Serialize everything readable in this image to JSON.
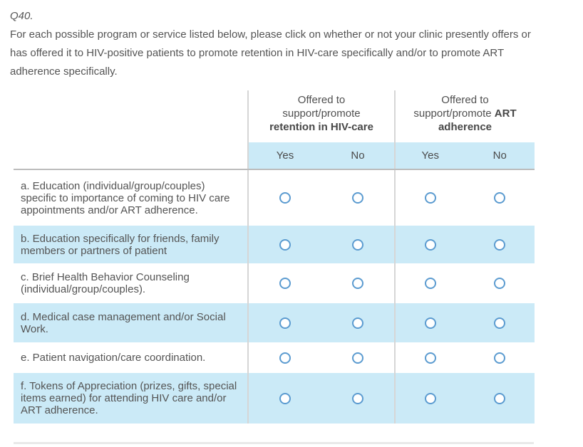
{
  "colors": {
    "row_shade_blue": "#cbeaf7",
    "radio_border_blue": "#5b9bd0",
    "column_line_gray": "#d6d6d6",
    "table_top_border_gray": "#bcbcbc",
    "divider_gray": "#e9e9e9",
    "text_gray": "#545454"
  },
  "question": {
    "number": "Q40.",
    "prompt": "For each possible program or service listed below, please click on whether or not your clinic presently offers or has offered it to HIV-positive patients to promote retention in HIV-care specifically and/or to promote ART adherence specifically."
  },
  "table": {
    "groups": [
      {
        "line1": "Offered to",
        "line2": "support/promote",
        "line3_bold": "retention in HIV-care",
        "yes": "Yes",
        "no": "No"
      },
      {
        "line1": "Offered to",
        "line2": "support/promote",
        "line2_bold": "ART",
        "line3_bold": "adherence",
        "yes": "Yes",
        "no": "No"
      }
    ],
    "rows": [
      {
        "key": "a",
        "shaded": false,
        "label": "a. Education (individual/group/couples) specific to importance of coming to HIV care appointments and/or ART adherence."
      },
      {
        "key": "b",
        "shaded": true,
        "label": "b. Education specifically for friends, family members or partners of patient"
      },
      {
        "key": "c",
        "shaded": false,
        "label": "c. Brief Health Behavior Counseling (individual/group/couples)."
      },
      {
        "key": "d",
        "shaded": true,
        "label": "d. Medical case management and/or Social Work."
      },
      {
        "key": "e",
        "shaded": false,
        "label": "e. Patient navigation/care coordination."
      },
      {
        "key": "f",
        "shaded": true,
        "label": "f. Tokens of Appreciation (prizes, gifts, special items earned) for attending HIV care and/or ART adherence."
      }
    ],
    "radio_state": "all-unselected"
  }
}
